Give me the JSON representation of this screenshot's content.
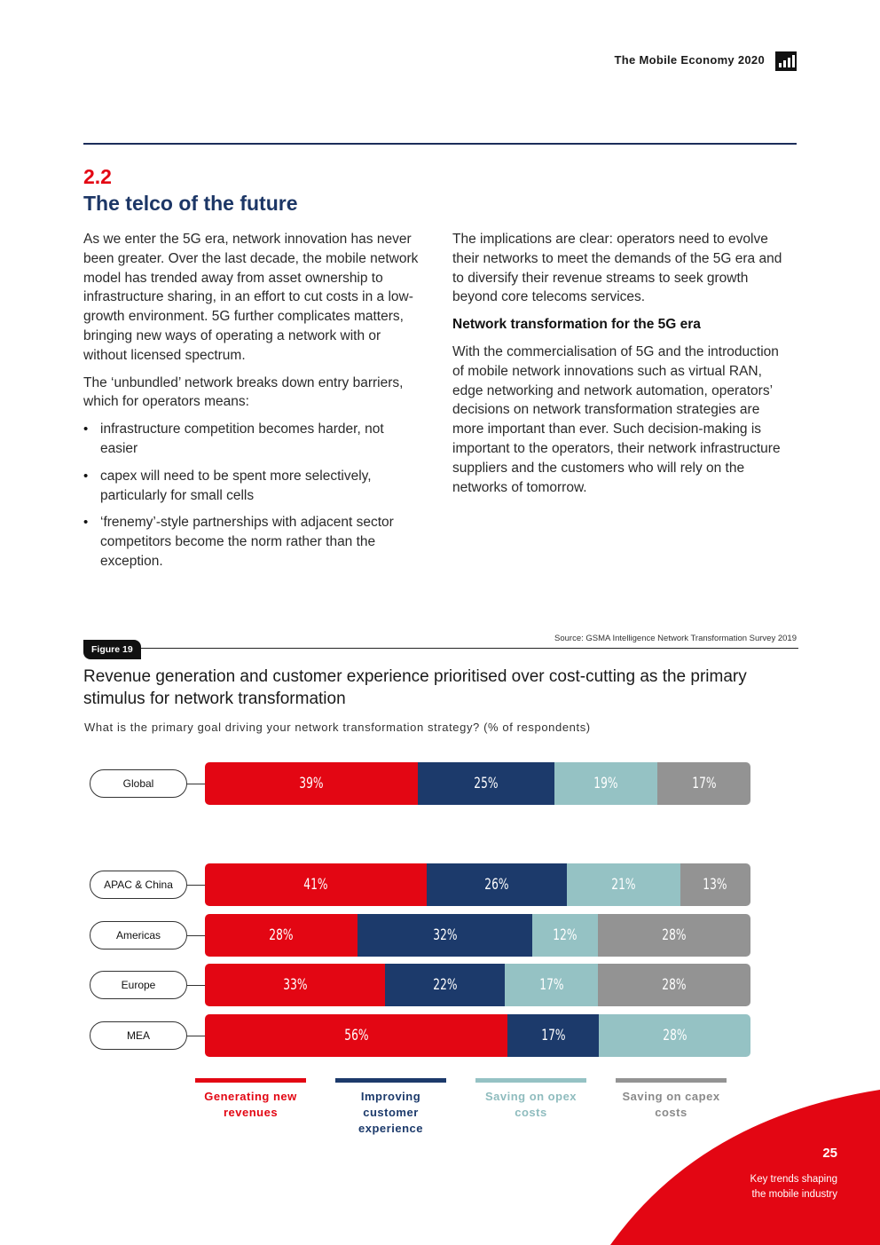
{
  "header": {
    "title": "The Mobile Economy 2020"
  },
  "section": {
    "number": "2.2",
    "title": "The telco of the future"
  },
  "left_column": {
    "p1": "As we enter the 5G era, network innovation has never been greater. Over the last decade, the mobile network model has trended away from asset ownership to infrastructure sharing, in an effort to cut costs in a low-growth environment. 5G further complicates matters, bringing new ways of operating a network with or without licensed spectrum.",
    "p2": "The ‘unbundled’ network breaks down entry barriers, which for operators means:",
    "bullets": [
      "infrastructure competition becomes harder, not easier",
      "capex will need to be spent more selectively, particularly for small cells",
      "‘frenemy’-style partnerships with adjacent sector competitors become the norm rather than the exception."
    ]
  },
  "right_column": {
    "p1": "The implications are clear: operators need to evolve their networks to meet the demands of the 5G era and to diversify their revenue streams to seek growth beyond core telecoms services.",
    "subheading": "Network transformation for the 5G era",
    "p2": "With the commercialisation of 5G and the introduction of mobile network innovations such as virtual RAN, edge networking and network automation, operators’ decisions on network transformation strategies are more important than ever. Such decision-making is important to the operators, their network infrastructure suppliers and the customers who will rely on the networks of tomorrow."
  },
  "figure": {
    "tag": "Figure 19",
    "source": "Source: GSMA Intelligence Network Transformation Survey 2019",
    "title": "Revenue generation and customer experience prioritised over cost-cutting as the primary stimulus for network transformation",
    "question": "What is the primary goal driving your network transformation strategy? (% of respondents)"
  },
  "chart_data": {
    "type": "bar",
    "orientation": "horizontal-stacked-100",
    "categories": [
      "Global",
      "APAC & China",
      "Americas",
      "Europe",
      "MEA"
    ],
    "series": [
      {
        "name": "Generating new revenues",
        "color": "#e30613",
        "values": [
          39,
          41,
          28,
          33,
          56
        ],
        "labels": [
          "39%",
          "41%",
          "28%",
          "33%",
          "56%"
        ]
      },
      {
        "name": "Improving customer experience",
        "color": "#1c3a6b",
        "values": [
          25,
          26,
          32,
          22,
          17
        ],
        "labels": [
          "25%",
          "26%",
          "32%",
          "22%",
          "17%"
        ]
      },
      {
        "name": "Saving on opex costs",
        "color": "#95c2c4",
        "values": [
          19,
          21,
          12,
          17,
          28
        ],
        "labels": [
          "19%",
          "21%",
          "12%",
          "17%",
          "28%"
        ]
      },
      {
        "name": "Saving on capex costs",
        "color": "#939393",
        "values": [
          17,
          13,
          28,
          28,
          0
        ],
        "labels": [
          "17%",
          "13%",
          "28%",
          "28%",
          ""
        ]
      }
    ],
    "legend": [
      "Generating new revenues",
      "Improving customer experience",
      "Saving on opex costs",
      "Saving on capex costs"
    ],
    "legend_position": "bottom"
  },
  "footer": {
    "page": "25",
    "line1": "Key trends shaping",
    "line2": "the mobile industry"
  }
}
